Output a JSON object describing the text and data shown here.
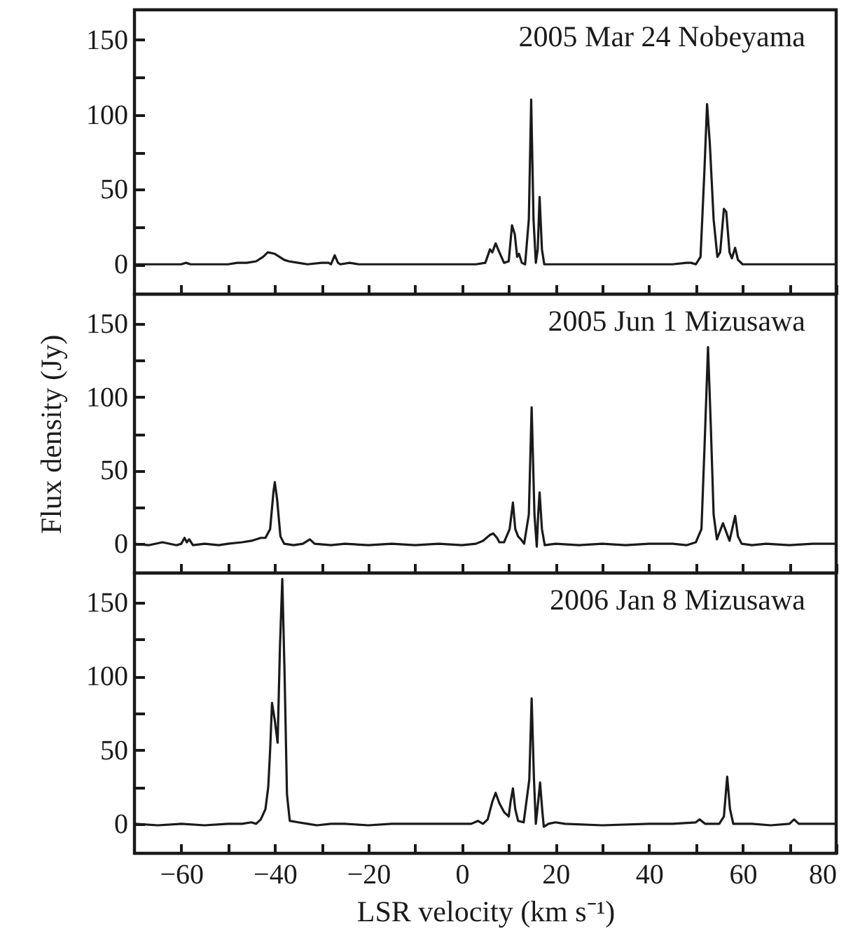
{
  "chart_data": [
    {
      "type": "line",
      "annotations": [
        "2005 Mar 24   Nobeyama"
      ],
      "xlim": [
        -70,
        80
      ],
      "ylim": [
        -20,
        170
      ],
      "xticks": [
        -60,
        {
          "value": -50,
          "label": null
        },
        -40,
        {
          "value": -30,
          "label": null
        },
        -20,
        {
          "value": -10,
          "label": null
        },
        0,
        {
          "value": 10,
          "label": null
        },
        20,
        {
          "value": 30,
          "label": null
        },
        40,
        {
          "value": 50,
          "label": null
        },
        60,
        {
          "value": 70,
          "label": null
        },
        80
      ],
      "yticks": [
        0,
        {
          "value": 25,
          "label": null
        },
        50,
        {
          "value": 75,
          "label": null
        },
        100,
        {
          "value": 125,
          "label": null
        },
        150
      ],
      "tick_labels": "y",
      "grid": false,
      "x": [
        -70,
        -60,
        -59,
        -58,
        -55,
        -50,
        -48,
        -46,
        -44,
        -42.5,
        -41.5,
        -40,
        -39,
        -38,
        -37,
        -35,
        -33,
        -30,
        -28.5,
        -28,
        -27.2,
        -26.5,
        -26,
        -24,
        -22,
        -15,
        -10,
        -5,
        0,
        3,
        5,
        6,
        6.5,
        7.2,
        8,
        9,
        10,
        10.7,
        11.3,
        11.8,
        12.2,
        12.8,
        13.5,
        14.3,
        14.8,
        15.3,
        15.8,
        16.2,
        16.6,
        17.1,
        17.6,
        20,
        25,
        30,
        40,
        45,
        48,
        49,
        50,
        51,
        51.8,
        52.4,
        53,
        53.8,
        54.6,
        55.2,
        56,
        56.5,
        57.2,
        57.7,
        58.4,
        59,
        60,
        65,
        70,
        75,
        80
      ],
      "series": [
        {
          "color": "#1a1a1a",
          "values": [
            0,
            0,
            1,
            0,
            0,
            0,
            1,
            1,
            2,
            5,
            8,
            7,
            5,
            3,
            2,
            1,
            0,
            1,
            1,
            0,
            6,
            1,
            0,
            1,
            0,
            0,
            0,
            0,
            0,
            0,
            1,
            10,
            8,
            14,
            8,
            1,
            2,
            26,
            20,
            5,
            7,
            1,
            0,
            30,
            110,
            30,
            1,
            10,
            45,
            10,
            0,
            0,
            0,
            0,
            0,
            0,
            1,
            1,
            0,
            5,
            60,
            107,
            80,
            30,
            5,
            8,
            37,
            35,
            8,
            4,
            11,
            3,
            0,
            0,
            0,
            0,
            0
          ]
        }
      ]
    },
    {
      "type": "line",
      "annotations": [
        "2005 Jun 1   Mizusawa"
      ],
      "ylabel": "Flux density (Jy)",
      "xlim": [
        -70,
        80
      ],
      "ylim": [
        -20,
        170
      ],
      "xticks": [
        -60,
        {
          "value": -50,
          "label": null
        },
        -40,
        {
          "value": -30,
          "label": null
        },
        -20,
        {
          "value": -10,
          "label": null
        },
        0,
        {
          "value": 10,
          "label": null
        },
        20,
        {
          "value": 30,
          "label": null
        },
        40,
        {
          "value": 50,
          "label": null
        },
        60,
        {
          "value": 70,
          "label": null
        },
        80
      ],
      "yticks": [
        0,
        {
          "value": 25,
          "label": null
        },
        50,
        {
          "value": 75,
          "label": null
        },
        100,
        {
          "value": 125,
          "label": null
        },
        150
      ],
      "tick_labels": "y",
      "grid": false,
      "x": [
        -70,
        -67,
        -64,
        -61,
        -60,
        -59.3,
        -58.8,
        -58.3,
        -57.5,
        -55,
        -52,
        -50,
        -47,
        -45,
        -43,
        -42,
        -41,
        -40.3,
        -40,
        -39.5,
        -38.8,
        -38,
        -36,
        -34,
        -32.5,
        -31.5,
        -28,
        -25,
        -20,
        -15,
        -10,
        -5,
        0,
        3,
        4.5,
        6,
        6.7,
        7.5,
        8,
        9,
        10.2,
        10.9,
        11.4,
        12,
        12.6,
        13.3,
        14.3,
        14.9,
        15.5,
        16,
        16.3,
        16.6,
        17.1,
        17.7,
        20,
        25,
        30,
        35,
        40,
        45,
        48,
        50,
        51.2,
        51.9,
        52.6,
        53.2,
        53.8,
        54.5,
        55.8,
        56.5,
        57.2,
        58.4,
        59,
        59.8,
        62,
        65,
        70,
        75,
        80
      ],
      "series": [
        {
          "color": "#1a1a1a",
          "values": [
            0,
            -1,
            1,
            -1,
            0,
            4,
            1,
            3,
            -1,
            0,
            -1,
            0,
            1,
            2,
            4,
            4,
            10,
            35,
            42,
            30,
            5,
            0,
            -1,
            0,
            3,
            0,
            -1,
            0,
            -1,
            0,
            -1,
            0,
            -1,
            0,
            2,
            6,
            7,
            4,
            1,
            1,
            10,
            28,
            10,
            5,
            3,
            0,
            20,
            93,
            20,
            -2,
            20,
            35,
            10,
            -1,
            0,
            -1,
            0,
            -1,
            0,
            0,
            -1,
            1,
            10,
            70,
            134,
            80,
            20,
            3,
            14,
            8,
            2,
            19,
            5,
            0,
            -1,
            0,
            -1,
            0,
            0
          ]
        }
      ]
    },
    {
      "type": "line",
      "annotations": [
        "2006 Jan 8   Mizusawa"
      ],
      "xlabel": "LSR velocity (km s⁻¹)",
      "xlim": [
        -70,
        80
      ],
      "ylim": [
        -20,
        170
      ],
      "xticks": [
        -60,
        {
          "value": -50,
          "label": null
        },
        -40,
        {
          "value": -30,
          "label": null
        },
        -20,
        {
          "value": -10,
          "label": null
        },
        0,
        {
          "value": 10,
          "label": null
        },
        20,
        {
          "value": 30,
          "label": null
        },
        40,
        {
          "value": 50,
          "label": null
        },
        60,
        {
          "value": 70,
          "label": null
        },
        80
      ],
      "yticks": [
        0,
        {
          "value": 25,
          "label": null
        },
        50,
        {
          "value": 75,
          "label": null
        },
        100,
        {
          "value": 125,
          "label": null
        },
        150
      ],
      "grid": false,
      "x": [
        -70,
        -65,
        -60,
        -55,
        -50,
        -47,
        -45,
        -44,
        -43,
        -42,
        -41.4,
        -41,
        -40.6,
        -40,
        -39.4,
        -38.9,
        -38.4,
        -37.9,
        -37.4,
        -36.8,
        -35,
        -33,
        -31,
        -28,
        -25,
        -20,
        -15,
        -10,
        -5,
        0,
        2,
        3.4,
        4.5,
        5.5,
        6.5,
        7.2,
        8,
        9,
        10,
        10.4,
        10.9,
        11.4,
        12,
        13.2,
        14.4,
        14.9,
        15.4,
        15.8,
        16.3,
        16.7,
        17.2,
        17.5,
        18.5,
        20,
        22,
        30,
        40,
        45,
        50,
        50.8,
        52,
        55,
        56,
        56.7,
        57.3,
        58,
        62,
        66,
        70,
        71,
        72,
        75,
        80
      ],
      "series": [
        {
          "color": "#1a1a1a",
          "values": [
            0,
            -1,
            0,
            -1,
            0,
            0,
            1,
            0,
            3,
            10,
            25,
            50,
            82,
            70,
            55,
            120,
            166,
            100,
            20,
            2,
            1,
            0,
            -1,
            0,
            0,
            -1,
            0,
            0,
            0,
            0,
            0,
            2,
            0,
            3,
            15,
            21,
            14,
            8,
            5,
            15,
            24,
            10,
            2,
            1,
            30,
            85,
            30,
            0,
            15,
            28,
            8,
            -2,
            0,
            1,
            0,
            -1,
            0,
            0,
            1,
            3,
            0,
            0,
            5,
            32,
            10,
            0,
            0,
            -1,
            0,
            3,
            0,
            0,
            0
          ]
        }
      ]
    }
  ]
}
